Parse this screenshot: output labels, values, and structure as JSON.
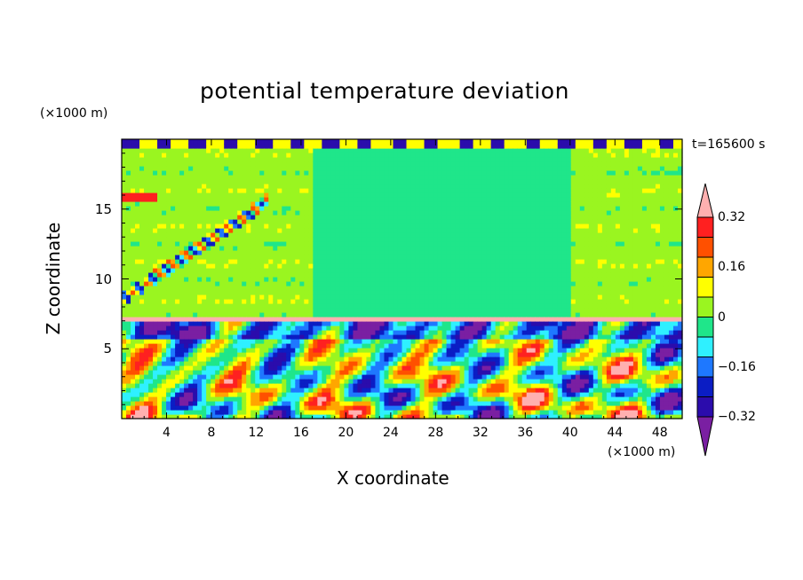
{
  "chart_data": {
    "type": "heatmap",
    "title": "potential temperature deviation",
    "xlabel": "X coordinate",
    "ylabel": "Z coordinate",
    "x_unit": "(×1000 m)",
    "y_unit": "(×1000 m)",
    "time_label": "t=165600 s",
    "xlim": [
      0,
      50
    ],
    "ylim": [
      0,
      20
    ],
    "x_ticks": [
      "4",
      "8",
      "12",
      "16",
      "20",
      "24",
      "28",
      "32",
      "36",
      "40",
      "44",
      "48"
    ],
    "y_ticks": [
      "5",
      "10",
      "15"
    ],
    "colorbar": {
      "levels": [
        -0.4,
        -0.32,
        -0.24,
        -0.16,
        -0.08,
        0,
        0.08,
        0.16,
        0.24,
        0.32,
        0.4
      ],
      "tick_labels": [
        "0.32",
        "0.16",
        "0",
        "−0.16",
        "−0.32"
      ],
      "tick_values": [
        0.32,
        0.16,
        0,
        -0.16,
        -0.32
      ],
      "colors": [
        "#7a1fa2",
        "#2b0cac",
        "#0b1dc4",
        "#1e78ff",
        "#2ff0ff",
        "#1fe68a",
        "#9af520",
        "#ffff00",
        "#ffa600",
        "#ff5000",
        "#ff2020",
        "#ffb0b0"
      ]
    }
  }
}
